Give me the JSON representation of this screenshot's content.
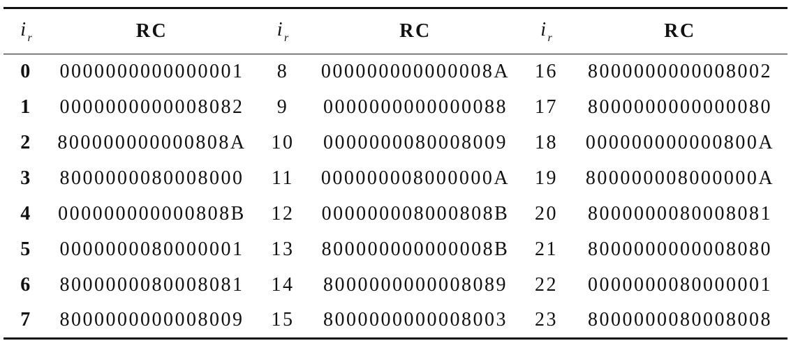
{
  "table": {
    "header": [
      {
        "main": "i",
        "sub": "r"
      },
      "RC",
      {
        "main": "i",
        "sub": "r"
      },
      "RC",
      {
        "main": "i",
        "sub": "r"
      },
      "RC"
    ],
    "rows": [
      [
        "0",
        "0000000000000001",
        "8",
        "000000000000008A",
        "16",
        "8000000000008002"
      ],
      [
        "1",
        "0000000000008082",
        "9",
        "0000000000000088",
        "17",
        "8000000000000080"
      ],
      [
        "2",
        "800000000000808A",
        "10",
        "0000000080008009",
        "18",
        "000000000000800A"
      ],
      [
        "3",
        "8000000080008000",
        "11",
        "000000008000000A",
        "19",
        "800000008000000A"
      ],
      [
        "4",
        "000000000000808B",
        "12",
        "000000008000808B",
        "20",
        "8000000080008081"
      ],
      [
        "5",
        "0000000080000001",
        "13",
        "800000000000008B",
        "21",
        "8000000000008080"
      ],
      [
        "6",
        "8000000080008081",
        "14",
        "8000000000008089",
        "22",
        "0000000080000001"
      ],
      [
        "7",
        "8000000000008009",
        "15",
        "8000000000008003",
        "23",
        "8000000080008008"
      ]
    ]
  }
}
